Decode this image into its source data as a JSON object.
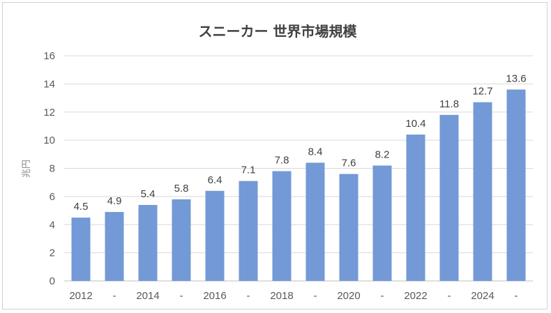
{
  "chart_data": {
    "type": "bar",
    "title": "スニーカー 世界市場規模",
    "ylabel": "兆円",
    "xlabel": "",
    "categories": [
      "2012",
      "-",
      "2014",
      "-",
      "2016",
      "-",
      "2018",
      "-",
      "2020",
      "-",
      "2022",
      "-",
      "2024",
      "-"
    ],
    "values": [
      4.5,
      4.9,
      5.4,
      5.8,
      6.4,
      7.1,
      7.8,
      8.4,
      7.6,
      8.2,
      10.4,
      11.8,
      12.7,
      13.6
    ],
    "data_labels": [
      "4.5",
      "4.9",
      "5.4",
      "5.8",
      "6.4",
      "7.1",
      "7.8",
      "8.4",
      "7.6",
      "8.2",
      "10.4",
      "11.8",
      "12.7",
      "13.6"
    ],
    "ylim": [
      0,
      16
    ],
    "yticks": [
      "0",
      "2",
      "4",
      "6",
      "8",
      "10",
      "12",
      "14",
      "16"
    ],
    "grid": true,
    "colors": {
      "bar": "#7399d6",
      "grid": "#d9d9d9",
      "axis": "#bfbfbf"
    }
  }
}
